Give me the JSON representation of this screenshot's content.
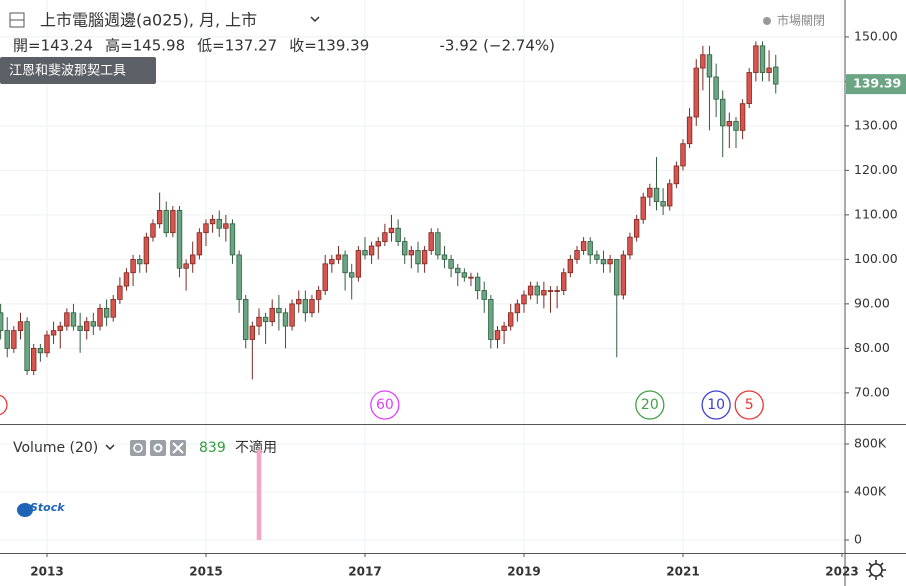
{
  "chart_data": {
    "type": "candlestick",
    "title": "上市電腦週邊(a025), 月, 上市",
    "ohlc": [
      "開=143.24",
      "高=145.98",
      "低=137.27",
      "收=139.39"
    ],
    "change": "-3.92 (−2.74%)",
    "status": "市場關閉",
    "tool_label": "江恩和斐波那契工具",
    "up_color": "#d9534f",
    "down_color": "#6ba583",
    "x": [
      2012.417,
      2012.5,
      2012.583,
      2012.667,
      2012.75,
      2012.833,
      2012.917,
      2013.0,
      2013.083,
      2013.167,
      2013.25,
      2013.333,
      2013.417,
      2013.5,
      2013.583,
      2013.667,
      2013.75,
      2013.833,
      2013.917,
      2014.0,
      2014.083,
      2014.167,
      2014.25,
      2014.333,
      2014.417,
      2014.5,
      2014.583,
      2014.667,
      2014.75,
      2014.833,
      2014.917,
      2015.0,
      2015.083,
      2015.167,
      2015.25,
      2015.333,
      2015.417,
      2015.5,
      2015.583,
      2015.667,
      2015.75,
      2015.833,
      2015.917,
      2016.0,
      2016.083,
      2016.167,
      2016.25,
      2016.333,
      2016.417,
      2016.5,
      2016.583,
      2016.667,
      2016.75,
      2016.833,
      2016.917,
      2017.0,
      2017.083,
      2017.167,
      2017.25,
      2017.333,
      2017.417,
      2017.5,
      2017.583,
      2017.667,
      2017.75,
      2017.833,
      2017.917,
      2018.0,
      2018.083,
      2018.167,
      2018.25,
      2018.333,
      2018.417,
      2018.5,
      2018.583,
      2018.667,
      2018.75,
      2018.833,
      2018.917,
      2019.0,
      2019.083,
      2019.167,
      2019.25,
      2019.333,
      2019.417,
      2019.5,
      2019.583,
      2019.667,
      2019.75,
      2019.833,
      2019.917,
      2020.0,
      2020.083,
      2020.167,
      2020.25,
      2020.333,
      2020.417,
      2020.5,
      2020.583,
      2020.667,
      2020.75,
      2020.833,
      2020.917,
      2021.0,
      2021.083,
      2021.167,
      2021.25,
      2021.333,
      2021.417,
      2021.5,
      2021.583,
      2021.667,
      2021.75,
      2021.833,
      2021.917,
      2022.0,
      2022.083,
      2022.167
    ],
    "open": [
      88,
      84,
      80,
      84,
      86,
      75,
      80,
      79,
      83,
      84,
      85,
      88,
      85,
      84,
      86,
      85,
      89,
      87,
      91,
      94,
      97,
      100,
      99,
      105,
      108,
      111,
      106,
      111,
      98,
      99,
      101,
      106,
      108,
      109,
      107,
      108,
      101,
      91,
      82,
      85,
      87,
      86,
      89,
      88,
      85,
      90,
      91,
      88,
      91,
      93,
      99,
      100,
      101,
      97,
      96,
      102,
      101,
      103,
      104,
      106,
      107,
      104,
      101,
      102,
      99,
      102,
      106,
      101,
      100,
      98,
      97,
      96,
      96,
      93,
      91,
      82,
      84,
      85,
      88,
      90,
      92,
      94,
      92,
      93,
      93,
      93,
      97,
      100,
      102,
      104,
      101,
      100,
      99,
      100,
      92,
      101,
      105,
      109,
      114,
      116,
      113,
      112,
      117,
      121,
      126,
      132,
      143,
      146,
      141,
      136,
      130,
      131,
      129,
      135,
      142,
      148,
      142,
      143.24
    ],
    "high": [
      90,
      87,
      85,
      88,
      87,
      81,
      81,
      84,
      86,
      86,
      89,
      90,
      88,
      87,
      88,
      90,
      91,
      92,
      96,
      98,
      101,
      101,
      106,
      109,
      115,
      113,
      112,
      112,
      100,
      104,
      107,
      109,
      110,
      111,
      110,
      109,
      102,
      92,
      86,
      89,
      88,
      91,
      92,
      89,
      91,
      93,
      93,
      92,
      94,
      101,
      101,
      103,
      102,
      99,
      103,
      105,
      104,
      105,
      108,
      110,
      109,
      105,
      103,
      104,
      103,
      107,
      107,
      103,
      101,
      99,
      98,
      97,
      97,
      95,
      92,
      85,
      86,
      90,
      91,
      93,
      95,
      95,
      95,
      94,
      94,
      98,
      101,
      103,
      105,
      105,
      102,
      102,
      101,
      100,
      102,
      106,
      110,
      115,
      117,
      123,
      116,
      118,
      122,
      127,
      134,
      145,
      148,
      148,
      144,
      138,
      133,
      132,
      136,
      143,
      149,
      149,
      147,
      145.98
    ],
    "low": [
      82,
      78,
      79,
      82,
      74,
      74,
      77,
      78,
      81,
      80,
      84,
      84,
      79,
      82,
      83,
      84,
      85,
      86,
      90,
      93,
      94,
      97,
      97,
      104,
      107,
      105,
      105,
      96,
      93,
      97,
      100,
      103,
      106,
      105,
      104,
      99,
      88,
      80,
      73,
      83,
      81,
      85,
      84,
      80,
      84,
      88,
      86,
      87,
      88,
      92,
      97,
      99,
      93,
      91,
      95,
      100,
      99,
      100,
      103,
      104,
      103,
      99,
      98,
      97,
      97,
      101,
      100,
      98,
      96,
      94,
      95,
      94,
      91,
      88,
      80,
      80,
      81,
      84,
      86,
      88,
      91,
      90,
      89,
      88,
      89,
      92,
      96,
      99,
      101,
      99,
      99,
      97,
      97,
      78,
      91,
      100,
      104,
      108,
      112,
      111,
      110,
      111,
      116,
      120,
      125,
      130,
      138,
      129,
      132,
      123,
      125,
      125,
      127,
      134,
      140,
      140,
      140,
      137.27
    ],
    "close": [
      84,
      80,
      84,
      86,
      75,
      80,
      79,
      83,
      84,
      85,
      88,
      85,
      84,
      86,
      85,
      89,
      87,
      91,
      94,
      97,
      100,
      99,
      105,
      108,
      111,
      106,
      111,
      98,
      99,
      101,
      106,
      108,
      109,
      107,
      108,
      101,
      91,
      82,
      85,
      87,
      86,
      89,
      88,
      85,
      90,
      91,
      88,
      91,
      93,
      99,
      100,
      101,
      97,
      96,
      102,
      101,
      103,
      104,
      106,
      107,
      104,
      101,
      102,
      99,
      102,
      106,
      101,
      100,
      98,
      97,
      96,
      96,
      93,
      91,
      82,
      84,
      85,
      88,
      90,
      92,
      94,
      92,
      93,
      93,
      93,
      97,
      100,
      102,
      104,
      101,
      100,
      99,
      100,
      92,
      101,
      105,
      109,
      114,
      116,
      113,
      112,
      117,
      121,
      126,
      132,
      143,
      146,
      141,
      136,
      130,
      131,
      129,
      135,
      142,
      148,
      142,
      143,
      139.39
    ],
    "xlim": [
      2012.409,
      2023.038
    ],
    "xticks": [
      2013,
      2015,
      2017,
      2019,
      2021,
      2023
    ],
    "ylim": [
      63,
      158.3
    ],
    "yticks": [
      {
        "value": 70,
        "label": "70.00"
      },
      {
        "value": 80,
        "label": "80.00"
      },
      {
        "value": 90,
        "label": "90.00"
      },
      {
        "value": 100,
        "label": "100.00"
      },
      {
        "value": 110,
        "label": "110.00"
      },
      {
        "value": 120,
        "label": "120.00"
      },
      {
        "value": 130,
        "label": "130.00"
      },
      {
        "value": 140,
        "label": "140.00"
      },
      {
        "value": 150,
        "label": "150.00"
      }
    ],
    "grid": true,
    "markers": [
      {
        "label": "60",
        "x": 2017.25,
        "color": "#e040fb"
      },
      {
        "label": "20",
        "x": 2020.583,
        "color": "#43a047"
      },
      {
        "label": "10",
        "x": 2021.417,
        "color": "#3f3fd0"
      },
      {
        "label": "5",
        "x": 2021.833,
        "color": "#e53935"
      }
    ],
    "volume": {
      "title": "Volume (20)",
      "value_label": "839",
      "status": "不適用",
      "color": "#f4a6c8",
      "x": [
        2015.667
      ],
      "values": [
        750000
      ],
      "ylim": [
        -108000,
        958000
      ],
      "yticks": [
        0,
        {
          "value": 400000,
          "label": "400K"
        },
        {
          "value": 800000,
          "label": "800K"
        }
      ]
    },
    "logo": "Stock"
  }
}
